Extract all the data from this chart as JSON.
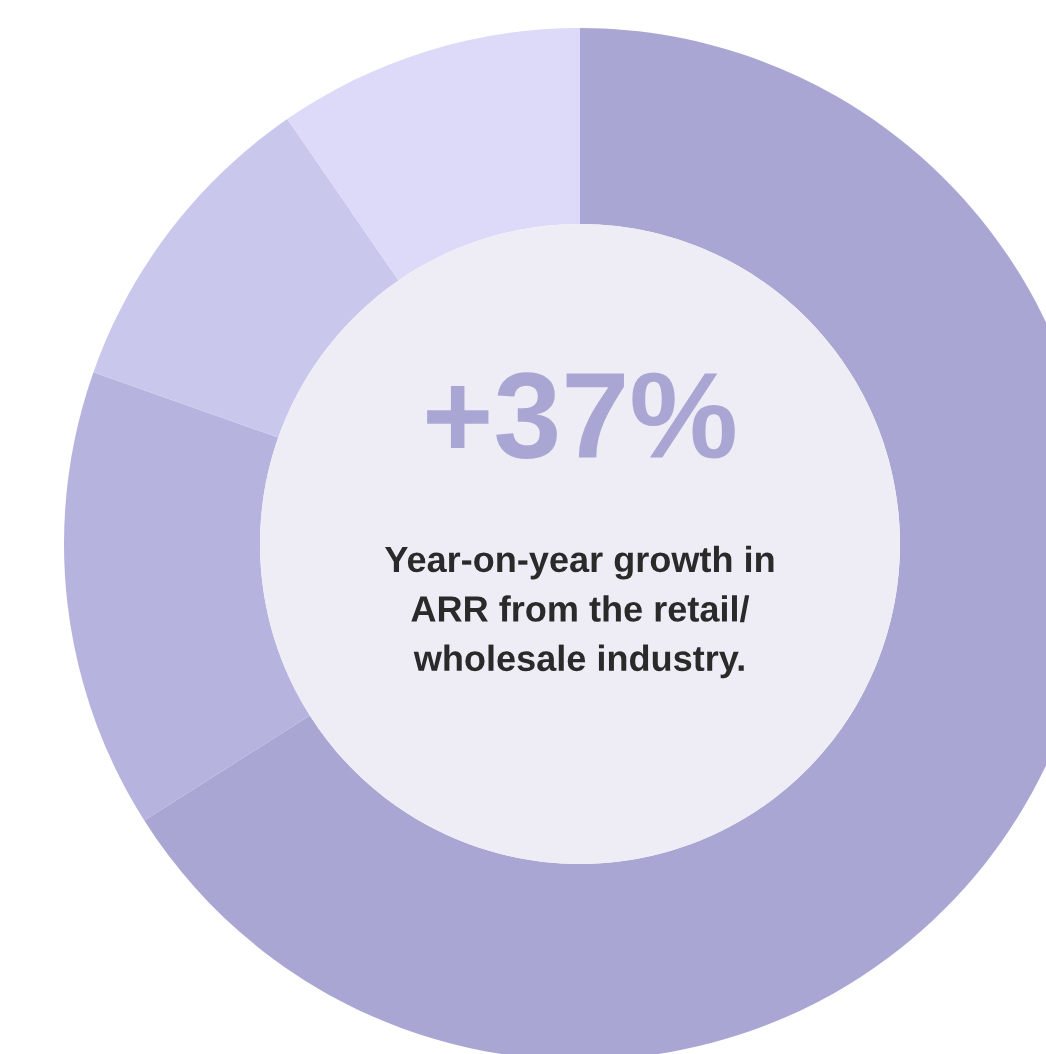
{
  "chart_data": {
    "type": "donut",
    "categories": [
      null,
      null,
      null,
      null
    ],
    "values": [
      66,
      14.4,
      10,
      9.6
    ],
    "colors": [
      "#a9a6d4",
      "#b6b3df",
      "#c9c7ec",
      "#dcdaf8"
    ],
    "annotations": [
      "+37%",
      "Year-on-year growth in\nARR from the retail/\nwholesale industry."
    ],
    "legend": false
  }
}
